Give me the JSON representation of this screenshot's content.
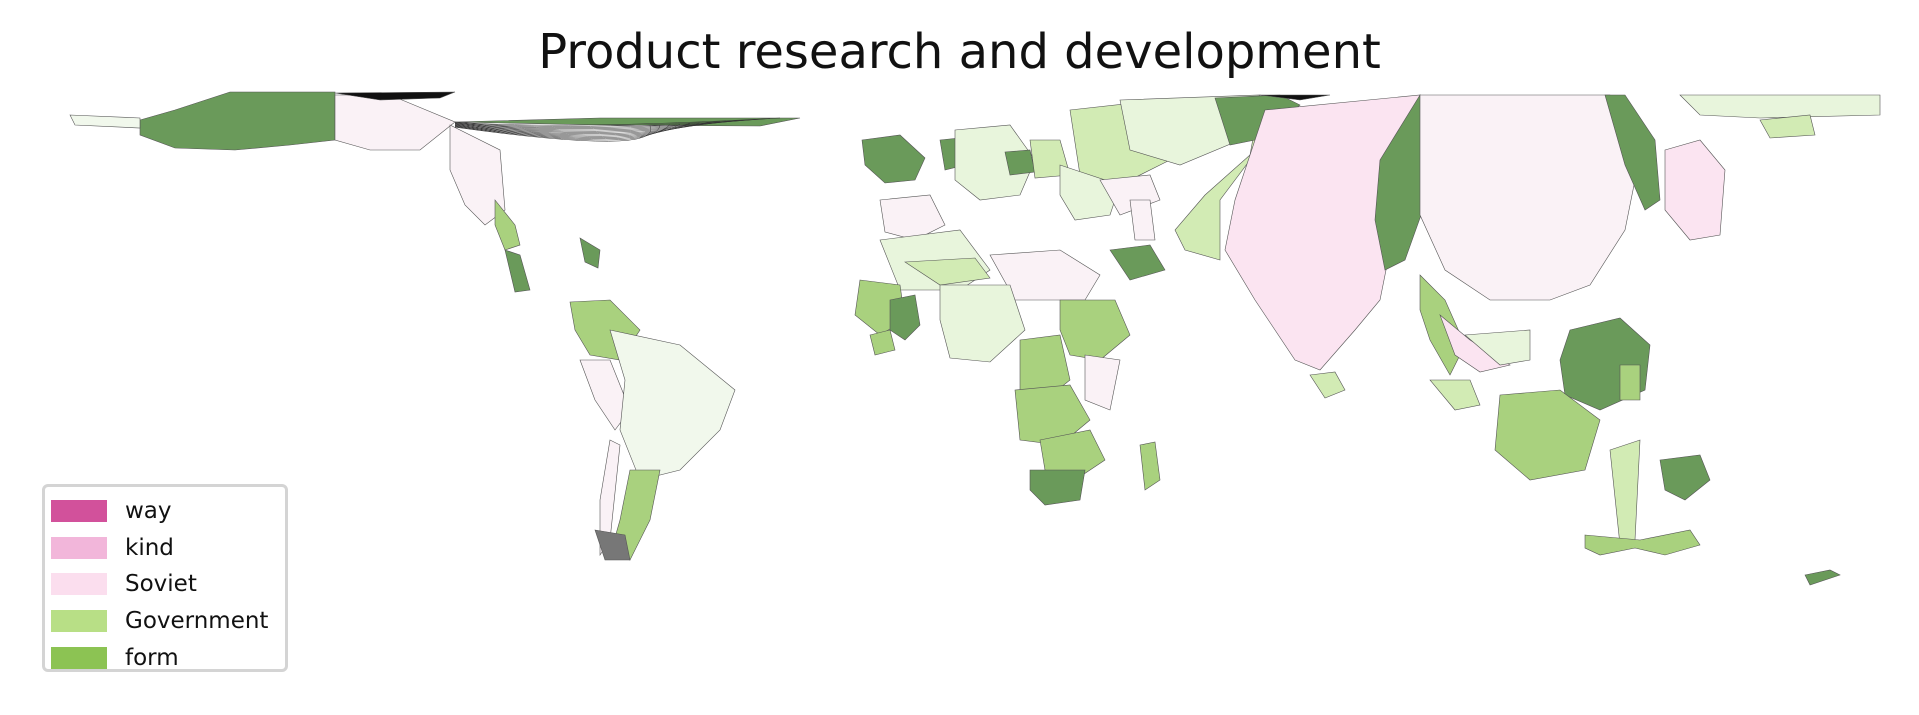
{
  "title": "Product research and development",
  "legend": {
    "placement": "lower-left",
    "items": [
      {
        "label": "way",
        "color": "#d2519b"
      },
      {
        "label": "kind",
        "color": "#f2b6da"
      },
      {
        "label": "Soviet",
        "color": "#fbdeee"
      },
      {
        "label": "Government",
        "color": "#b8df86"
      },
      {
        "label": "form",
        "color": "#8cc353"
      }
    ]
  },
  "palette": {
    "dark_green": "#6a9a5a",
    "mid_green": "#a9d17e",
    "light_green": "#d2ebb4",
    "pale_green": "#e8f5dc",
    "faint_green": "#f1f8ec",
    "light_pink": "#fbe4f1",
    "faint_pink": "#faf2f6",
    "border": "#555555"
  }
}
